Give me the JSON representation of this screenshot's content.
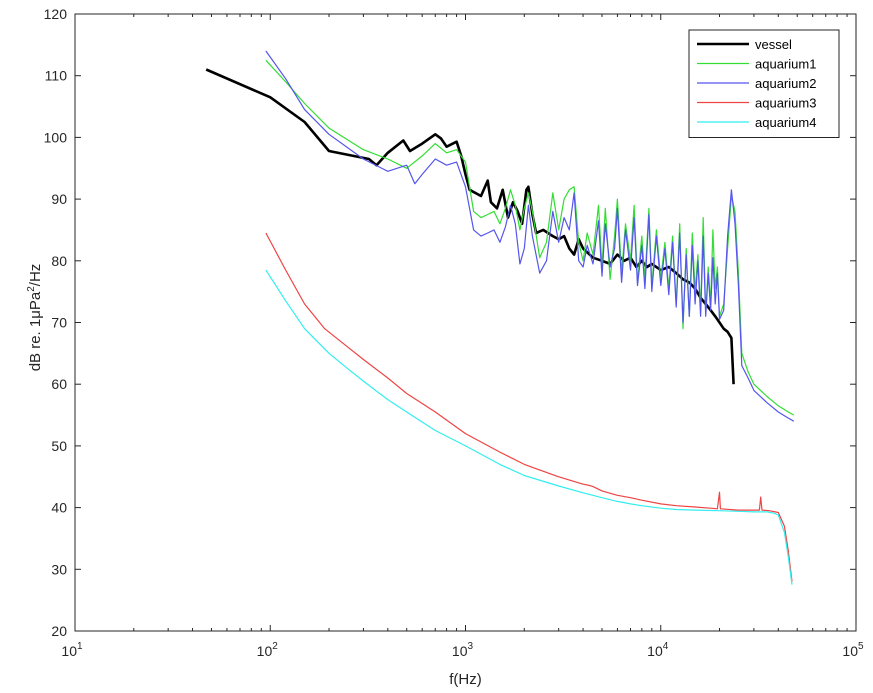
{
  "chart_data": {
    "type": "line",
    "xlabel": "f(Hz)",
    "ylabel_main": "dB re. 1",
    "ylabel_mu": "μ",
    "ylabel_pa": "Pa",
    "ylabel_sup": "2",
    "ylabel_tail": "/Hz",
    "x_scale": "log",
    "xlim": [
      10,
      100000
    ],
    "ylim": [
      20,
      120
    ],
    "grid": false,
    "legend_position": "top-right",
    "x_ticks": [
      {
        "value": 10,
        "base": "10",
        "exp": "1"
      },
      {
        "value": 100,
        "base": "10",
        "exp": "2"
      },
      {
        "value": 1000,
        "base": "10",
        "exp": "3"
      },
      {
        "value": 10000,
        "base": "10",
        "exp": "4"
      },
      {
        "value": 100000,
        "base": "10",
        "exp": "5"
      }
    ],
    "y_ticks": [
      "20",
      "30",
      "40",
      "50",
      "60",
      "70",
      "80",
      "90",
      "100",
      "110",
      "120"
    ],
    "series": [
      {
        "name": "vessel",
        "color": "#000000",
        "width": 2.6,
        "points": [
          [
            47,
            111
          ],
          [
            100,
            106.5
          ],
          [
            150,
            102.5
          ],
          [
            200,
            97.8
          ],
          [
            320,
            96.5
          ],
          [
            350,
            95.5
          ],
          [
            400,
            97.5
          ],
          [
            480,
            99.5
          ],
          [
            520,
            97.8
          ],
          [
            600,
            99
          ],
          [
            700,
            100.5
          ],
          [
            750,
            99.8
          ],
          [
            800,
            98.5
          ],
          [
            900,
            99.3
          ],
          [
            950,
            97
          ],
          [
            1000,
            94
          ],
          [
            1050,
            91.5
          ],
          [
            1200,
            90.5
          ],
          [
            1300,
            93
          ],
          [
            1350,
            89.5
          ],
          [
            1450,
            88.5
          ],
          [
            1550,
            91.5
          ],
          [
            1650,
            87
          ],
          [
            1750,
            89.5
          ],
          [
            1850,
            88
          ],
          [
            1950,
            86
          ],
          [
            2050,
            91.5
          ],
          [
            2100,
            92
          ],
          [
            2200,
            87.5
          ],
          [
            2300,
            84.5
          ],
          [
            2500,
            85
          ],
          [
            2800,
            84
          ],
          [
            3000,
            83.5
          ],
          [
            3200,
            84
          ],
          [
            3400,
            82
          ],
          [
            3600,
            81
          ],
          [
            3800,
            83.5
          ],
          [
            4000,
            82
          ],
          [
            4500,
            80.5
          ],
          [
            5000,
            80
          ],
          [
            5500,
            79.5
          ],
          [
            6000,
            81
          ],
          [
            6500,
            80
          ],
          [
            7000,
            80.5
          ],
          [
            7500,
            79
          ],
          [
            8000,
            80
          ],
          [
            8500,
            79
          ],
          [
            9000,
            79.5
          ],
          [
            10000,
            78.5
          ],
          [
            11000,
            79
          ],
          [
            12000,
            78
          ],
          [
            13000,
            77
          ],
          [
            14000,
            76.5
          ],
          [
            15000,
            75.5
          ],
          [
            16000,
            74
          ],
          [
            17000,
            73
          ],
          [
            18000,
            72
          ],
          [
            19000,
            71
          ],
          [
            20000,
            70
          ],
          [
            21000,
            69
          ],
          [
            22000,
            68.5
          ],
          [
            23000,
            67.5
          ],
          [
            23600,
            60
          ]
        ]
      },
      {
        "name": "aquarium1",
        "color": "#33dd33",
        "width": 1.2,
        "points": [
          [
            95,
            112.5
          ],
          [
            120,
            109
          ],
          [
            150,
            105.5
          ],
          [
            200,
            101.5
          ],
          [
            300,
            98
          ],
          [
            400,
            96.5
          ],
          [
            500,
            95
          ],
          [
            600,
            97
          ],
          [
            700,
            99
          ],
          [
            800,
            97.5
          ],
          [
            900,
            98
          ],
          [
            1000,
            96
          ],
          [
            1100,
            88
          ],
          [
            1200,
            87
          ],
          [
            1300,
            87.5
          ],
          [
            1400,
            88
          ],
          [
            1500,
            86
          ],
          [
            1600,
            88.5
          ],
          [
            1700,
            91.5
          ],
          [
            1800,
            89
          ],
          [
            1900,
            85
          ],
          [
            2000,
            88.5
          ],
          [
            2100,
            91
          ],
          [
            2200,
            88
          ],
          [
            2400,
            80.5
          ],
          [
            2600,
            83
          ],
          [
            2800,
            91
          ],
          [
            3000,
            85
          ],
          [
            3200,
            90
          ],
          [
            3400,
            91.5
          ],
          [
            3600,
            92
          ],
          [
            3800,
            83
          ],
          [
            4000,
            80
          ],
          [
            4200,
            84.5
          ],
          [
            4500,
            81
          ],
          [
            4800,
            89
          ],
          [
            5000,
            79
          ],
          [
            5200,
            88.5
          ],
          [
            5500,
            77
          ],
          [
            5800,
            84
          ],
          [
            6000,
            90
          ],
          [
            6300,
            78
          ],
          [
            6600,
            86
          ],
          [
            7000,
            80
          ],
          [
            7300,
            89
          ],
          [
            7600,
            76.5
          ],
          [
            8000,
            84
          ],
          [
            8300,
            77
          ],
          [
            8700,
            88.5
          ],
          [
            9000,
            76
          ],
          [
            9500,
            85
          ],
          [
            10000,
            77
          ],
          [
            10500,
            83
          ],
          [
            11000,
            75.5
          ],
          [
            11500,
            84
          ],
          [
            12000,
            73
          ],
          [
            12500,
            86
          ],
          [
            13000,
            69
          ],
          [
            13500,
            82
          ],
          [
            14000,
            71
          ],
          [
            14500,
            84.5
          ],
          [
            15000,
            75
          ],
          [
            15500,
            81
          ],
          [
            16000,
            72
          ],
          [
            16500,
            87
          ],
          [
            17000,
            71.5
          ],
          [
            17500,
            79
          ],
          [
            18000,
            73
          ],
          [
            18500,
            85
          ],
          [
            19000,
            75.5
          ],
          [
            19500,
            79
          ],
          [
            20000,
            71
          ],
          [
            21000,
            73
          ],
          [
            22000,
            82
          ],
          [
            23000,
            90.5
          ],
          [
            24000,
            88
          ],
          [
            25000,
            78
          ],
          [
            26000,
            65
          ],
          [
            28000,
            62
          ],
          [
            30000,
            60
          ],
          [
            35000,
            58
          ],
          [
            40000,
            56.5
          ],
          [
            45000,
            55.5
          ],
          [
            48000,
            55
          ]
        ]
      },
      {
        "name": "aquarium2",
        "color": "#5555ee",
        "width": 1.2,
        "points": [
          [
            95,
            114
          ],
          [
            120,
            109.5
          ],
          [
            150,
            104.5
          ],
          [
            200,
            100.5
          ],
          [
            300,
            96.5
          ],
          [
            400,
            94.5
          ],
          [
            500,
            95.5
          ],
          [
            550,
            92.5
          ],
          [
            600,
            94
          ],
          [
            700,
            96.5
          ],
          [
            800,
            95.5
          ],
          [
            900,
            96
          ],
          [
            1000,
            92
          ],
          [
            1100,
            85
          ],
          [
            1200,
            84
          ],
          [
            1300,
            84.5
          ],
          [
            1400,
            85
          ],
          [
            1500,
            83
          ],
          [
            1600,
            85.5
          ],
          [
            1700,
            89
          ],
          [
            1800,
            86
          ],
          [
            1900,
            79.5
          ],
          [
            2000,
            82
          ],
          [
            2100,
            89
          ],
          [
            2200,
            84
          ],
          [
            2400,
            78
          ],
          [
            2600,
            80
          ],
          [
            2800,
            88
          ],
          [
            3000,
            83
          ],
          [
            3200,
            87
          ],
          [
            3400,
            85
          ],
          [
            3600,
            91
          ],
          [
            3800,
            80
          ],
          [
            4000,
            79
          ],
          [
            4200,
            82.5
          ],
          [
            4500,
            79.5
          ],
          [
            4800,
            86.5
          ],
          [
            5000,
            77.5
          ],
          [
            5200,
            86
          ],
          [
            5500,
            79
          ],
          [
            5800,
            82
          ],
          [
            6000,
            88.5
          ],
          [
            6300,
            76.5
          ],
          [
            6600,
            85
          ],
          [
            7000,
            78.5
          ],
          [
            7300,
            87
          ],
          [
            7600,
            76
          ],
          [
            8000,
            82.5
          ],
          [
            8300,
            75.5
          ],
          [
            8700,
            87.5
          ],
          [
            9000,
            75
          ],
          [
            9500,
            84
          ],
          [
            10000,
            76
          ],
          [
            10500,
            82
          ],
          [
            11000,
            74.5
          ],
          [
            11500,
            83
          ],
          [
            12000,
            72.5
          ],
          [
            12500,
            84.5
          ],
          [
            13000,
            70
          ],
          [
            13500,
            81
          ],
          [
            14000,
            71
          ],
          [
            14500,
            82.5
          ],
          [
            15000,
            73
          ],
          [
            15500,
            80
          ],
          [
            16000,
            71
          ],
          [
            16500,
            84
          ],
          [
            17000,
            71
          ],
          [
            17500,
            78
          ],
          [
            18000,
            72
          ],
          [
            18500,
            80.5
          ],
          [
            19000,
            73
          ],
          [
            19500,
            78
          ],
          [
            20000,
            70.5
          ],
          [
            21000,
            72
          ],
          [
            22000,
            84
          ],
          [
            23000,
            91.5
          ],
          [
            24000,
            86
          ],
          [
            25000,
            76
          ],
          [
            26000,
            63
          ],
          [
            28000,
            61
          ],
          [
            30000,
            59
          ],
          [
            35000,
            57
          ],
          [
            40000,
            55.5
          ],
          [
            45000,
            54.5
          ],
          [
            48000,
            54
          ]
        ]
      },
      {
        "name": "aquarium3",
        "color": "#ee4444",
        "width": 1.2,
        "points": [
          [
            95,
            84.5
          ],
          [
            120,
            78.5
          ],
          [
            150,
            73
          ],
          [
            190,
            69
          ],
          [
            250,
            66
          ],
          [
            300,
            64
          ],
          [
            400,
            61
          ],
          [
            500,
            58.5
          ],
          [
            700,
            55.5
          ],
          [
            1000,
            52
          ],
          [
            1500,
            49
          ],
          [
            2000,
            47
          ],
          [
            3000,
            45
          ],
          [
            4000,
            43.8
          ],
          [
            4300,
            43.6
          ],
          [
            4500,
            43.4
          ],
          [
            5000,
            42.7
          ],
          [
            6000,
            42
          ],
          [
            7000,
            41.6
          ],
          [
            8000,
            41.2
          ],
          [
            10000,
            40.6
          ],
          [
            12000,
            40.3
          ],
          [
            15000,
            40.1
          ],
          [
            18000,
            39.9
          ],
          [
            19500,
            39.8
          ],
          [
            20000,
            42.5
          ],
          [
            20200,
            39.8
          ],
          [
            25000,
            39.6
          ],
          [
            30000,
            39.6
          ],
          [
            32000,
            39.6
          ],
          [
            32500,
            41.7
          ],
          [
            33000,
            39.6
          ],
          [
            36000,
            39.5
          ],
          [
            40000,
            39.2
          ],
          [
            43000,
            37
          ],
          [
            45000,
            33
          ],
          [
            47000,
            28
          ]
        ]
      },
      {
        "name": "aquarium4",
        "color": "#33eeee",
        "width": 1.2,
        "points": [
          [
            95,
            78.5
          ],
          [
            120,
            73.5
          ],
          [
            150,
            69
          ],
          [
            200,
            65
          ],
          [
            250,
            62.5
          ],
          [
            300,
            60.5
          ],
          [
            400,
            57.5
          ],
          [
            500,
            55.5
          ],
          [
            700,
            52.5
          ],
          [
            1000,
            50
          ],
          [
            1500,
            47
          ],
          [
            2000,
            45.2
          ],
          [
            3000,
            43.5
          ],
          [
            4000,
            42.4
          ],
          [
            5000,
            41.6
          ],
          [
            6000,
            41
          ],
          [
            7000,
            40.6
          ],
          [
            8000,
            40.3
          ],
          [
            10000,
            39.9
          ],
          [
            12000,
            39.7
          ],
          [
            15000,
            39.6
          ],
          [
            20000,
            39.5
          ],
          [
            25000,
            39.4
          ],
          [
            30000,
            39.3
          ],
          [
            35000,
            39.3
          ],
          [
            38000,
            39.1
          ],
          [
            40000,
            38.8
          ],
          [
            43000,
            36
          ],
          [
            45000,
            32
          ],
          [
            47000,
            27.5
          ]
        ]
      }
    ]
  }
}
